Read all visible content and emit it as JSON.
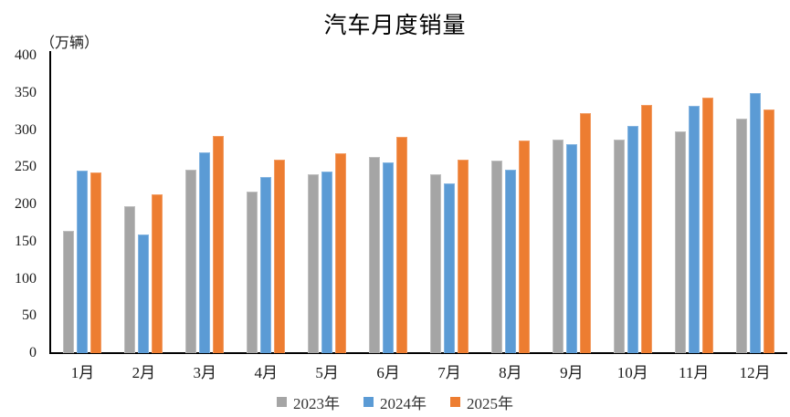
{
  "chart_data": {
    "type": "bar",
    "title": "汽车月度销量",
    "ylabel": "（万辆）",
    "xlabel": "",
    "categories": [
      "1月",
      "2月",
      "3月",
      "4月",
      "5月",
      "6月",
      "7月",
      "8月",
      "9月",
      "10月",
      "11月",
      "12月"
    ],
    "series": [
      {
        "name": "2023年",
        "color": "#a5a5a5",
        "edge_color": "#bfbfbf",
        "values": [
          165,
          198,
          247,
          217,
          240,
          264,
          240,
          259,
          287,
          287,
          298,
          316
        ]
      },
      {
        "name": "2024年",
        "color": "#5b9bd5",
        "edge_color": "#84b4e0",
        "values": [
          246,
          160,
          270,
          237,
          244,
          256,
          228,
          247,
          281,
          306,
          333,
          350
        ]
      },
      {
        "name": "2025年",
        "color": "#ed7d31",
        "edge_color": "#f29c63",
        "values": [
          243,
          213,
          292,
          260,
          269,
          291,
          260,
          286,
          323,
          334,
          344,
          328
        ]
      }
    ],
    "ylim": [
      0,
      400
    ],
    "ytick_step": 50,
    "grid": false,
    "legend_position": "bottom",
    "axis_color": "#000000",
    "text_color": "#1a1a1a"
  }
}
